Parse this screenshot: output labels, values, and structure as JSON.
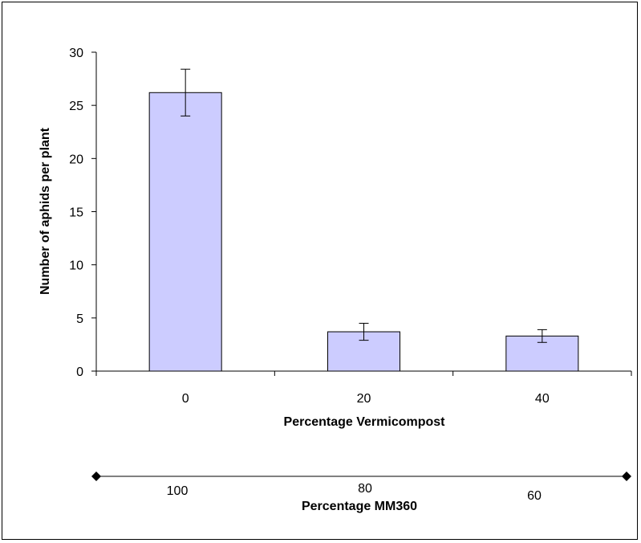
{
  "chart_data": {
    "type": "bar",
    "title": "",
    "categories": [
      "0",
      "20",
      "40"
    ],
    "values": [
      26.2,
      3.7,
      3.3
    ],
    "error": [
      2.2,
      0.8,
      0.6
    ],
    "ylabel": "Number of aphids per plant",
    "xlabel": "Percentage Vermicompost",
    "ylim": [
      0,
      30
    ],
    "yticks": [
      0,
      5,
      10,
      15,
      20,
      25,
      30
    ],
    "grid": false,
    "bar_color": "#ccccff",
    "secondary_axis": {
      "label": "Percentage MM360",
      "ticks": [
        "100",
        "80",
        "60"
      ]
    }
  }
}
